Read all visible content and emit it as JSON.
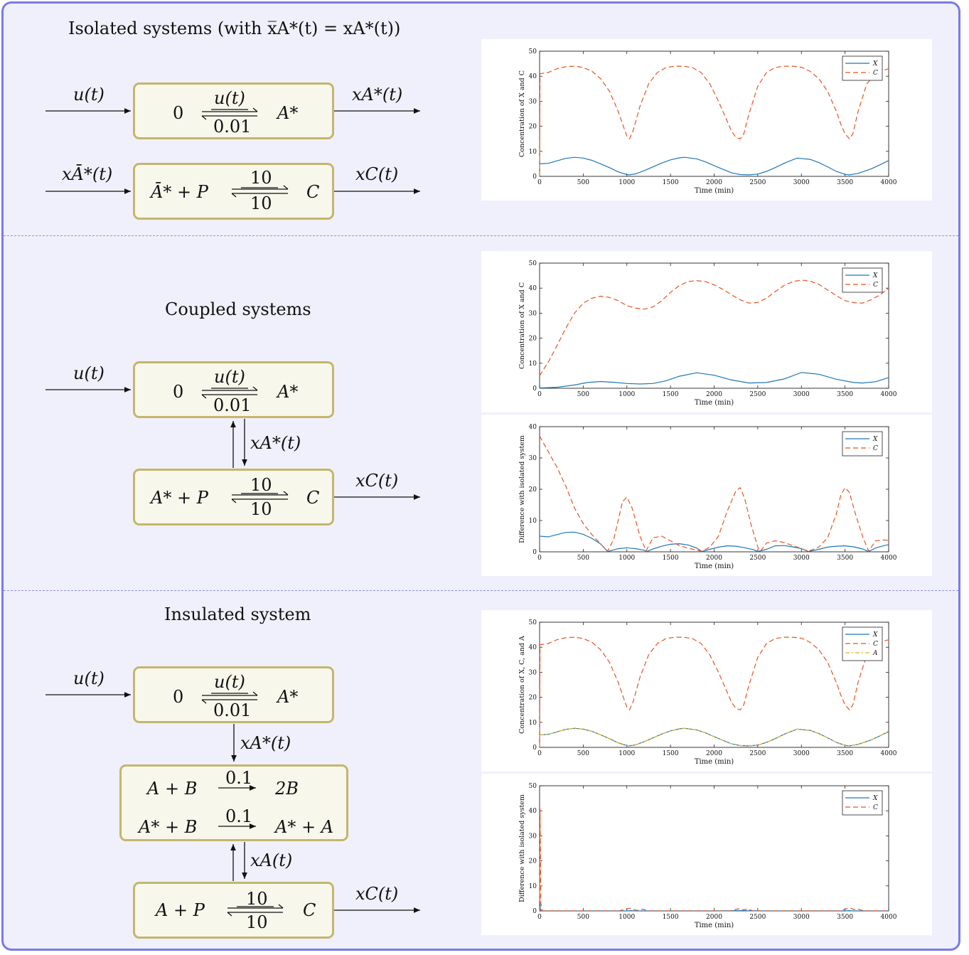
{
  "sections": {
    "isolated": {
      "heading": "Isolated systems (with x̅A*(t) = xA*(t))"
    },
    "coupled": {
      "heading": "Coupled systems"
    },
    "insulated": {
      "heading": "Insulated system"
    }
  },
  "signals": {
    "u": "u(t)",
    "xAstar": "xA*(t)",
    "xAbarstar": "xĀ*(t)",
    "xC": "xC(t)",
    "xA": "xA(t)"
  },
  "reactions": {
    "production": {
      "left": "0",
      "right": "A*",
      "forward_rate": "u(t)",
      "reverse_rate": "0.01"
    },
    "binding_isolated": {
      "left": "Ā* + P",
      "right": "C",
      "forward_rate": "10",
      "reverse_rate": "10"
    },
    "binding_coupled": {
      "left": "A* + P",
      "right": "C",
      "forward_rate": "10",
      "reverse_rate": "10"
    },
    "insulator_1": {
      "left": "A + B",
      "right": "2B",
      "rate": "0.1"
    },
    "insulator_2": {
      "left": "A* + B",
      "right": "A* + A",
      "rate": "0.1"
    },
    "binding_insulated": {
      "left": "A + P",
      "right": "C",
      "forward_rate": "10",
      "reverse_rate": "10"
    }
  },
  "colors": {
    "frame": "#7a7ae8",
    "box_border": "#c4b66c",
    "box_fill": "#f8f7ec",
    "series_X": "#1f77b4",
    "series_C": "#e8541e",
    "series_A": "#e0b21c"
  },
  "chart_data": [
    {
      "type": "line",
      "xlabel": "Time (min)",
      "ylabel": "Concentration of X and C",
      "xlim": [
        0,
        4000
      ],
      "ylim": [
        0,
        50
      ],
      "xticks": [
        0,
        500,
        1000,
        1500,
        2000,
        2500,
        3000,
        3500,
        4000
      ],
      "yticks": [
        0,
        10,
        20,
        30,
        40,
        50
      ],
      "legend": "top-right",
      "series": [
        {
          "name": "X",
          "style": "solid",
          "x": [
            0,
            100,
            200,
            300,
            400,
            500,
            600,
            700,
            800,
            900,
            1000,
            1030,
            1100,
            1200,
            1300,
            1400,
            1500,
            1600,
            1660,
            1800,
            1900,
            2000,
            2100,
            2200,
            2300,
            2400,
            2500,
            2600,
            2700,
            2800,
            2950,
            3100,
            3200,
            3300,
            3400,
            3500,
            3550,
            3650,
            3800,
            3900,
            4000
          ],
          "y": [
            5,
            5.2,
            6.2,
            7.2,
            7.6,
            7.3,
            6.4,
            5.0,
            3.5,
            1.8,
            0.7,
            0.6,
            1.0,
            2.3,
            3.8,
            5.3,
            6.6,
            7.4,
            7.6,
            7.0,
            5.8,
            4.3,
            2.8,
            1.4,
            0.7,
            0.6,
            0.9,
            2.0,
            3.5,
            5.2,
            7.3,
            6.8,
            5.5,
            3.8,
            2.0,
            0.8,
            0.6,
            1.2,
            3.0,
            4.6,
            6.3
          ]
        },
        {
          "name": "C",
          "style": "dashed",
          "x": [
            0,
            5,
            100,
            200,
            300,
            400,
            500,
            600,
            700,
            800,
            900,
            950,
            1000,
            1030,
            1070,
            1150,
            1250,
            1350,
            1450,
            1550,
            1650,
            1750,
            1850,
            1950,
            2050,
            2150,
            2200,
            2250,
            2300,
            2340,
            2400,
            2500,
            2600,
            2700,
            2800,
            2900,
            3000,
            3100,
            3200,
            3300,
            3400,
            3450,
            3500,
            3550,
            3590,
            3650,
            3750,
            3850,
            3950,
            4000
          ],
          "y": [
            0,
            41,
            41.5,
            43,
            43.8,
            44,
            43.5,
            42,
            39,
            34,
            26,
            21,
            16,
            15,
            18,
            28,
            37,
            41.5,
            43.5,
            44,
            44,
            43.5,
            41.5,
            37,
            30,
            22,
            18,
            15.5,
            15,
            17,
            25,
            36,
            41.5,
            43.5,
            44,
            44,
            43.6,
            42,
            39,
            34,
            26,
            21,
            17,
            15,
            17,
            26,
            37,
            41,
            42.5,
            43
          ]
        }
      ]
    },
    {
      "type": "line",
      "xlabel": "Time (min)",
      "ylabel": "Concentration of X and C",
      "xlim": [
        0,
        4000
      ],
      "ylim": [
        0,
        50
      ],
      "xticks": [
        0,
        500,
        1000,
        1500,
        2000,
        2500,
        3000,
        3500,
        4000
      ],
      "yticks": [
        0,
        10,
        20,
        30,
        40,
        50
      ],
      "legend": "top-right",
      "series": [
        {
          "name": "X",
          "style": "solid",
          "x": [
            0,
            200,
            400,
            550,
            700,
            850,
            1000,
            1150,
            1300,
            1450,
            1600,
            1800,
            2000,
            2200,
            2400,
            2600,
            2800,
            3000,
            3200,
            3400,
            3600,
            3700,
            3850,
            4000
          ],
          "y": [
            0.1,
            0.4,
            1.3,
            2.3,
            2.7,
            2.4,
            1.9,
            1.7,
            1.9,
            3.0,
            4.8,
            6.2,
            5.2,
            3.3,
            2.1,
            2.3,
            3.7,
            6.3,
            5.6,
            3.6,
            2.3,
            2.1,
            2.6,
            4.3
          ]
        },
        {
          "name": "C",
          "style": "dashed",
          "x": [
            0,
            100,
            200,
            300,
            400,
            500,
            600,
            700,
            800,
            900,
            1000,
            1100,
            1200,
            1300,
            1400,
            1500,
            1600,
            1700,
            1800,
            1900,
            2000,
            2100,
            2200,
            2300,
            2400,
            2500,
            2600,
            2700,
            2800,
            2900,
            3000,
            3100,
            3200,
            3300,
            3400,
            3500,
            3600,
            3700,
            3800,
            3900,
            4000
          ],
          "y": [
            5,
            10.5,
            17,
            24,
            30,
            34,
            36,
            36.8,
            36.3,
            35,
            33,
            32,
            31.6,
            32.5,
            35,
            38.3,
            41,
            42.6,
            43,
            42.6,
            41.3,
            39.5,
            37.3,
            35.3,
            34,
            34.3,
            36,
            38.6,
            41,
            42.6,
            43.2,
            42.8,
            41.5,
            39.3,
            37,
            35,
            34.2,
            34,
            35.4,
            37.3,
            40
          ]
        }
      ]
    },
    {
      "type": "line",
      "xlabel": "Time (min)",
      "ylabel": "Difference with isolated system",
      "xlim": [
        0,
        4000
      ],
      "ylim": [
        0,
        40
      ],
      "xticks": [
        0,
        500,
        1000,
        1500,
        2000,
        2500,
        3000,
        3500,
        4000
      ],
      "yticks": [
        0,
        10,
        20,
        30,
        40
      ],
      "legend": "top-right",
      "series": [
        {
          "name": "X",
          "style": "solid",
          "x": [
            0,
            100,
            200,
            300,
            400,
            500,
            600,
            700,
            780,
            900,
            1000,
            1100,
            1200,
            1230,
            1300,
            1400,
            1500,
            1600,
            1700,
            1800,
            1860,
            1950,
            2050,
            2150,
            2250,
            2350,
            2450,
            2500,
            2600,
            2700,
            2800,
            2900,
            3000,
            3080,
            3200,
            3300,
            3400,
            3500,
            3600,
            3700,
            3770,
            3850,
            3950,
            4000
          ],
          "y": [
            5,
            4.8,
            5.5,
            6.2,
            6.3,
            5.6,
            4.3,
            2.5,
            0.1,
            1.0,
            1.3,
            1.0,
            0.5,
            0.1,
            0.9,
            1.8,
            2.4,
            2.6,
            2.2,
            1.2,
            0.1,
            0.8,
            1.5,
            1.9,
            1.8,
            1.3,
            0.7,
            0.1,
            0.8,
            1.9,
            2.0,
            1.6,
            1.0,
            0.1,
            0.8,
            1.5,
            1.8,
            1.9,
            1.6,
            0.9,
            0.1,
            1.2,
            2.0,
            2.3
          ]
        },
        {
          "name": "C",
          "style": "dashed",
          "x": [
            0,
            100,
            200,
            300,
            400,
            500,
            600,
            700,
            780,
            850,
            900,
            950,
            1000,
            1060,
            1150,
            1220,
            1300,
            1400,
            1500,
            1600,
            1700,
            1800,
            1860,
            1950,
            2050,
            2150,
            2250,
            2300,
            2350,
            2420,
            2500,
            2530,
            2600,
            2700,
            2800,
            2900,
            3000,
            3080,
            3200,
            3300,
            3400,
            3450,
            3500,
            3550,
            3620,
            3700,
            3770,
            3850,
            3950,
            4000
          ],
          "y": [
            37,
            32,
            27,
            21,
            14,
            9,
            5.5,
            2.5,
            0.2,
            4,
            10,
            16,
            17.5,
            14,
            5,
            0.3,
            4.5,
            5,
            3.5,
            2,
            1.2,
            0.5,
            0.2,
            1.5,
            5,
            13,
            19.5,
            20.5,
            17,
            9,
            1.5,
            0.2,
            2.8,
            3.5,
            3,
            2,
            1,
            0.2,
            1.5,
            4.5,
            12,
            18,
            20.5,
            19,
            12,
            5,
            0.2,
            3.5,
            3.8,
            3.6
          ]
        }
      ]
    },
    {
      "type": "line",
      "xlabel": "Time (min)",
      "ylabel": "Concentration of X, C, and A",
      "xlim": [
        0,
        4000
      ],
      "ylim": [
        0,
        50
      ],
      "xticks": [
        0,
        500,
        1000,
        1500,
        2000,
        2500,
        3000,
        3500,
        4000
      ],
      "yticks": [
        0,
        10,
        20,
        30,
        40,
        50
      ],
      "legend": "top-right",
      "series": [
        {
          "name": "X",
          "style": "solid",
          "x": [
            0,
            100,
            200,
            300,
            400,
            500,
            600,
            700,
            800,
            900,
            1000,
            1030,
            1100,
            1200,
            1300,
            1400,
            1500,
            1600,
            1660,
            1800,
            1900,
            2000,
            2100,
            2200,
            2300,
            2400,
            2500,
            2600,
            2700,
            2800,
            2950,
            3100,
            3200,
            3300,
            3400,
            3500,
            3550,
            3650,
            3800,
            3900,
            4000
          ],
          "y": [
            5,
            5.2,
            6.2,
            7.2,
            7.6,
            7.3,
            6.4,
            5.0,
            3.5,
            1.8,
            0.7,
            0.6,
            1.0,
            2.3,
            3.8,
            5.3,
            6.6,
            7.4,
            7.6,
            7.0,
            5.8,
            4.3,
            2.8,
            1.4,
            0.7,
            0.6,
            0.9,
            2.0,
            3.5,
            5.2,
            7.3,
            6.8,
            5.5,
            3.8,
            2.0,
            0.8,
            0.6,
            1.2,
            3.0,
            4.6,
            6.3
          ]
        },
        {
          "name": "C",
          "style": "dashed",
          "x": [
            0,
            5,
            100,
            200,
            300,
            400,
            500,
            600,
            700,
            800,
            900,
            950,
            1000,
            1030,
            1070,
            1150,
            1250,
            1350,
            1450,
            1550,
            1650,
            1750,
            1850,
            1950,
            2050,
            2150,
            2200,
            2250,
            2300,
            2340,
            2400,
            2500,
            2600,
            2700,
            2800,
            2900,
            3000,
            3100,
            3200,
            3300,
            3400,
            3450,
            3500,
            3550,
            3590,
            3650,
            3750,
            3850,
            3950,
            4000
          ],
          "y": [
            0,
            41,
            41.5,
            43,
            43.8,
            44,
            43.5,
            42,
            39,
            34,
            26,
            21,
            16,
            15,
            18,
            28,
            37,
            41.5,
            43.5,
            44,
            44,
            43.5,
            41.5,
            37,
            30,
            22,
            18,
            15.5,
            15,
            17,
            25,
            36,
            41.5,
            43.5,
            44,
            44,
            43.6,
            42,
            39,
            34,
            26,
            21,
            17,
            15,
            17,
            26,
            37,
            41,
            42.5,
            43
          ]
        },
        {
          "name": "A",
          "style": "dashdot",
          "x": [
            0,
            100,
            200,
            300,
            400,
            500,
            600,
            700,
            800,
            900,
            1000,
            1030,
            1100,
            1200,
            1300,
            1400,
            1500,
            1600,
            1660,
            1800,
            1900,
            2000,
            2100,
            2200,
            2300,
            2400,
            2500,
            2600,
            2700,
            2800,
            2950,
            3100,
            3200,
            3300,
            3400,
            3500,
            3550,
            3650,
            3800,
            3900,
            4000
          ],
          "y": [
            5,
            5.2,
            6.2,
            7.2,
            7.6,
            7.3,
            6.4,
            5.0,
            3.5,
            1.8,
            0.7,
            0.6,
            1.0,
            2.3,
            3.8,
            5.3,
            6.6,
            7.4,
            7.6,
            7.0,
            5.8,
            4.3,
            2.8,
            1.4,
            0.7,
            0.6,
            0.9,
            2.0,
            3.5,
            5.2,
            7.3,
            6.8,
            5.5,
            3.8,
            2.0,
            0.8,
            0.6,
            1.2,
            3.0,
            4.6,
            6.3
          ]
        }
      ]
    },
    {
      "type": "line",
      "xlabel": "Time (min)",
      "ylabel": "Difference with isolated system",
      "xlim": [
        0,
        4000
      ],
      "ylim": [
        0,
        50
      ],
      "xticks": [
        0,
        500,
        1000,
        1500,
        2000,
        2500,
        3000,
        3500,
        4000
      ],
      "yticks": [
        0,
        10,
        20,
        30,
        40,
        50
      ],
      "legend": "top-right",
      "series": [
        {
          "name": "X",
          "style": "solid",
          "x": [
            0,
            10,
            30,
            1000,
            1050,
            1100,
            2000,
            2300,
            2600,
            3500,
            3550,
            3600,
            4000
          ],
          "y": [
            5,
            0.3,
            0,
            0,
            0.1,
            0,
            0,
            0.1,
            0,
            0,
            0.1,
            0,
            0
          ]
        },
        {
          "name": "C",
          "style": "dashed",
          "x": [
            0,
            5,
            15,
            30,
            900,
            980,
            1030,
            1080,
            1120,
            1180,
            1250,
            2200,
            2260,
            2300,
            2340,
            2380,
            2450,
            3450,
            3510,
            3560,
            3610,
            3650,
            3720,
            4000
          ],
          "y": [
            0,
            41,
            3,
            0,
            0,
            0.6,
            1.1,
            0.5,
            0.2,
            0.7,
            0,
            0,
            0.7,
            0.9,
            0.4,
            0.8,
            0,
            0,
            0.8,
            1.1,
            0.5,
            0.7,
            0,
            0
          ]
        }
      ]
    }
  ]
}
